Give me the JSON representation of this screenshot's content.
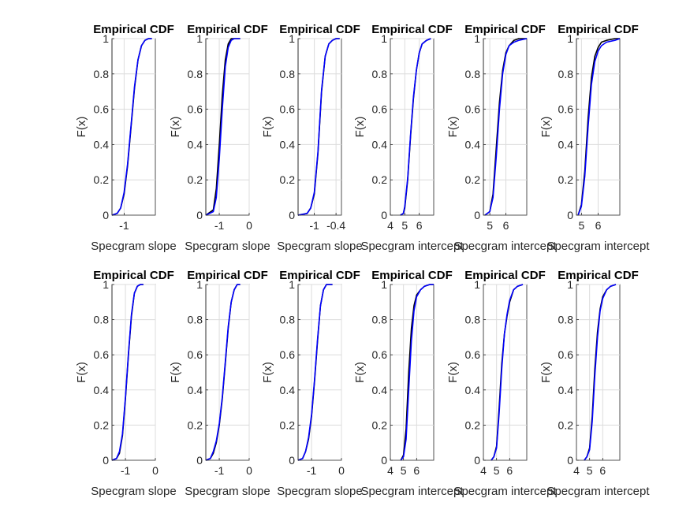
{
  "colors": {
    "series_primary": "#0000ff",
    "series_secondary": "#000000",
    "grid": "#dcdcdc",
    "axis": "#262626"
  },
  "chart_data": [
    {
      "type": "line",
      "title": "Empirical CDF",
      "xlabel": "Specgram slope",
      "ylabel": "F(x)",
      "xlim": [
        -1.35,
        -0.1
      ],
      "ylim": [
        0,
        1
      ],
      "xticks": [
        -1
      ],
      "xticklabels": [
        "-1"
      ],
      "yticks": [
        0,
        0.2,
        0.4,
        0.6,
        0.8,
        1
      ],
      "yticklabels": [
        "0",
        "0.2",
        "0.4",
        "0.6",
        "0.8",
        "1"
      ],
      "grid": true,
      "series": [
        {
          "color": "#000000",
          "x": [
            -1.35,
            -1.2,
            -1.1,
            -1.0,
            -0.9,
            -0.8,
            -0.7,
            -0.6,
            -0.5,
            -0.4,
            -0.3,
            -0.2
          ],
          "y": [
            0,
            0.01,
            0.04,
            0.12,
            0.28,
            0.5,
            0.72,
            0.88,
            0.96,
            0.99,
            1,
            1
          ]
        },
        {
          "color": "#0000ff",
          "x": [
            -1.35,
            -1.2,
            -1.1,
            -1.0,
            -0.9,
            -0.8,
            -0.7,
            -0.6,
            -0.5,
            -0.4,
            -0.3,
            -0.2
          ],
          "y": [
            0,
            0.01,
            0.04,
            0.13,
            0.29,
            0.51,
            0.73,
            0.88,
            0.96,
            0.99,
            1,
            1
          ]
        }
      ]
    },
    {
      "type": "line",
      "title": "Empirical CDF",
      "xlabel": "Specgram slope",
      "ylabel": "F(x)",
      "xlim": [
        -1.45,
        0
      ],
      "ylim": [
        0,
        1
      ],
      "xticks": [
        -1,
        0
      ],
      "xticklabels": [
        "-1",
        "0"
      ],
      "yticks": [
        0,
        0.2,
        0.4,
        0.6,
        0.8,
        1
      ],
      "yticklabels": [
        "0",
        "0.2",
        "0.4",
        "0.6",
        "0.8",
        "1"
      ],
      "grid": true,
      "series": [
        {
          "color": "#000000",
          "x": [
            -1.45,
            -1.2,
            -1.1,
            -1.0,
            -0.9,
            -0.8,
            -0.7,
            -0.6,
            -0.5,
            -0.4,
            -0.3
          ],
          "y": [
            0,
            0.03,
            0.15,
            0.4,
            0.68,
            0.88,
            0.97,
            1,
            1,
            1,
            1
          ]
        },
        {
          "color": "#0000ff",
          "x": [
            -1.45,
            -1.2,
            -1.1,
            -1.0,
            -0.9,
            -0.8,
            -0.7,
            -0.6,
            -0.5,
            -0.4,
            -0.3
          ],
          "y": [
            0,
            0.02,
            0.1,
            0.32,
            0.6,
            0.84,
            0.95,
            0.99,
            1,
            1,
            1
          ]
        }
      ]
    },
    {
      "type": "line",
      "title": "Empirical CDF",
      "xlabel": "Specgram slope",
      "ylabel": "F(x)",
      "xlim": [
        -1.45,
        -0.25
      ],
      "ylim": [
        0,
        1
      ],
      "xticks": [
        -1,
        -0.4
      ],
      "xticklabels": [
        "-1",
        "-0.4"
      ],
      "yticks": [
        0,
        0.2,
        0.4,
        0.6,
        0.8,
        1
      ],
      "yticklabels": [
        "0",
        "0.2",
        "0.4",
        "0.6",
        "0.8",
        "1"
      ],
      "grid": true,
      "series": [
        {
          "color": "#000000",
          "x": [
            -1.45,
            -1.2,
            -1.1,
            -1.0,
            -0.9,
            -0.8,
            -0.7,
            -0.6,
            -0.5,
            -0.4,
            -0.3
          ],
          "y": [
            0,
            0.01,
            0.04,
            0.12,
            0.35,
            0.7,
            0.9,
            0.97,
            0.99,
            1,
            1
          ]
        },
        {
          "color": "#0000ff",
          "x": [
            -1.45,
            -1.2,
            -1.1,
            -1.0,
            -0.9,
            -0.8,
            -0.7,
            -0.6,
            -0.5,
            -0.4,
            -0.3
          ],
          "y": [
            0,
            0.01,
            0.04,
            0.13,
            0.36,
            0.71,
            0.9,
            0.97,
            0.99,
            1,
            1
          ]
        }
      ]
    },
    {
      "type": "line",
      "title": "Empirical CDF",
      "xlabel": "Specgram intercept",
      "ylabel": "F(x)",
      "xlim": [
        4,
        7
      ],
      "ylim": [
        0,
        1
      ],
      "xticks": [
        4,
        5,
        6
      ],
      "xticklabels": [
        "4",
        "5",
        "6"
      ],
      "yticks": [
        0,
        0.2,
        0.4,
        0.6,
        0.8,
        1
      ],
      "yticklabels": [
        "0",
        "0.2",
        "0.4",
        "0.6",
        "0.8",
        "1"
      ],
      "grid": true,
      "series": [
        {
          "color": "#000000",
          "x": [
            4.7,
            4.9,
            5.0,
            5.2,
            5.4,
            5.6,
            5.8,
            6.0,
            6.2,
            6.5,
            6.8
          ],
          "y": [
            0,
            0.01,
            0.04,
            0.2,
            0.45,
            0.66,
            0.82,
            0.92,
            0.97,
            0.99,
            1
          ]
        },
        {
          "color": "#0000ff",
          "x": [
            4.7,
            4.9,
            5.0,
            5.2,
            5.4,
            5.6,
            5.8,
            6.0,
            6.2,
            6.5,
            6.8
          ],
          "y": [
            0,
            0.01,
            0.05,
            0.21,
            0.46,
            0.67,
            0.82,
            0.92,
            0.97,
            0.99,
            1
          ]
        }
      ]
    },
    {
      "type": "line",
      "title": "Empirical CDF",
      "xlabel": "Specgram intercept",
      "ylabel": "F(x)",
      "xlim": [
        4.6,
        7.3
      ],
      "ylim": [
        0,
        1
      ],
      "xticks": [
        5,
        6
      ],
      "xticklabels": [
        "5",
        "6"
      ],
      "yticks": [
        0,
        0.2,
        0.4,
        0.6,
        0.8,
        1
      ],
      "yticklabels": [
        "0",
        "0.2",
        "0.4",
        "0.6",
        "0.8",
        "1"
      ],
      "grid": true,
      "series": [
        {
          "color": "#000000",
          "x": [
            4.7,
            5.0,
            5.2,
            5.4,
            5.6,
            5.8,
            6.0,
            6.2,
            6.5,
            6.8,
            7.3
          ],
          "y": [
            0,
            0.02,
            0.12,
            0.38,
            0.64,
            0.82,
            0.92,
            0.96,
            0.99,
            1,
            1
          ]
        },
        {
          "color": "#0000ff",
          "x": [
            4.7,
            5.0,
            5.2,
            5.4,
            5.6,
            5.8,
            6.0,
            6.2,
            6.5,
            6.8,
            7.3
          ],
          "y": [
            0,
            0.02,
            0.1,
            0.33,
            0.6,
            0.8,
            0.91,
            0.96,
            0.98,
            0.99,
            1
          ]
        }
      ]
    },
    {
      "type": "line",
      "title": "Empirical CDF",
      "xlabel": "Specgram intercept",
      "ylabel": "F(x)",
      "xlim": [
        4.7,
        7.3
      ],
      "ylim": [
        0,
        1
      ],
      "xticks": [
        5,
        6
      ],
      "xticklabels": [
        "5",
        "6"
      ],
      "yticks": [
        0,
        0.2,
        0.4,
        0.6,
        0.8,
        1
      ],
      "yticklabels": [
        "0",
        "0.2",
        "0.4",
        "0.6",
        "0.8",
        "1"
      ],
      "grid": true,
      "series": [
        {
          "color": "#000000",
          "x": [
            4.8,
            5.0,
            5.2,
            5.4,
            5.6,
            5.8,
            6.0,
            6.2,
            6.5,
            7.0,
            7.3
          ],
          "y": [
            0,
            0.06,
            0.25,
            0.55,
            0.78,
            0.9,
            0.95,
            0.98,
            0.99,
            1,
            1
          ]
        },
        {
          "color": "#0000ff",
          "x": [
            4.8,
            5.0,
            5.2,
            5.4,
            5.6,
            5.8,
            6.0,
            6.2,
            6.5,
            7.0,
            7.3
          ],
          "y": [
            0,
            0.05,
            0.22,
            0.5,
            0.74,
            0.87,
            0.93,
            0.96,
            0.98,
            0.99,
            1
          ]
        }
      ]
    },
    {
      "type": "line",
      "title": "Empirical CDF",
      "xlabel": "Specgram slope",
      "ylabel": "F(x)",
      "xlim": [
        -1.45,
        0
      ],
      "ylim": [
        0,
        1
      ],
      "xticks": [
        -1,
        0
      ],
      "xticklabels": [
        "-1",
        "0"
      ],
      "yticks": [
        0,
        0.2,
        0.4,
        0.6,
        0.8,
        1
      ],
      "yticklabels": [
        "0",
        "0.2",
        "0.4",
        "0.6",
        "0.8",
        "1"
      ],
      "grid": true,
      "series": [
        {
          "color": "#000000",
          "x": [
            -1.45,
            -1.3,
            -1.2,
            -1.1,
            -1.0,
            -0.9,
            -0.8,
            -0.7,
            -0.6,
            -0.5,
            -0.4
          ],
          "y": [
            0,
            0.01,
            0.04,
            0.14,
            0.35,
            0.6,
            0.82,
            0.95,
            0.99,
            1,
            1
          ]
        },
        {
          "color": "#0000ff",
          "x": [
            -1.45,
            -1.3,
            -1.2,
            -1.1,
            -1.0,
            -0.9,
            -0.8,
            -0.7,
            -0.6,
            -0.5,
            -0.4
          ],
          "y": [
            0,
            0.01,
            0.05,
            0.15,
            0.36,
            0.61,
            0.83,
            0.95,
            0.99,
            1,
            1
          ]
        }
      ]
    },
    {
      "type": "line",
      "title": "Empirical CDF",
      "xlabel": "Specgram slope",
      "ylabel": "F(x)",
      "xlim": [
        -1.45,
        0
      ],
      "ylim": [
        0,
        1
      ],
      "xticks": [
        -1,
        0
      ],
      "xticklabels": [
        "-1",
        "0"
      ],
      "yticks": [
        0,
        0.2,
        0.4,
        0.6,
        0.8,
        1
      ],
      "yticklabels": [
        "0",
        "0.2",
        "0.4",
        "0.6",
        "0.8",
        "1"
      ],
      "grid": true,
      "series": [
        {
          "color": "#000000",
          "x": [
            -1.45,
            -1.3,
            -1.2,
            -1.1,
            -1.0,
            -0.9,
            -0.8,
            -0.7,
            -0.6,
            -0.5,
            -0.4,
            -0.3
          ],
          "y": [
            0,
            0.01,
            0.04,
            0.1,
            0.2,
            0.35,
            0.55,
            0.75,
            0.9,
            0.97,
            1,
            1
          ]
        },
        {
          "color": "#0000ff",
          "x": [
            -1.45,
            -1.3,
            -1.2,
            -1.1,
            -1.0,
            -0.9,
            -0.8,
            -0.7,
            -0.6,
            -0.5,
            -0.4,
            -0.3
          ],
          "y": [
            0,
            0.01,
            0.05,
            0.11,
            0.21,
            0.36,
            0.56,
            0.76,
            0.9,
            0.97,
            1,
            1
          ]
        }
      ]
    },
    {
      "type": "line",
      "title": "Empirical CDF",
      "xlabel": "Specgram slope",
      "ylabel": "F(x)",
      "xlim": [
        -1.45,
        0
      ],
      "ylim": [
        0,
        1
      ],
      "xticks": [
        -1,
        0
      ],
      "xticklabels": [
        "-1",
        "0"
      ],
      "yticks": [
        0,
        0.2,
        0.4,
        0.6,
        0.8,
        1
      ],
      "yticklabels": [
        "0",
        "0.2",
        "0.4",
        "0.6",
        "0.8",
        "1"
      ],
      "grid": true,
      "series": [
        {
          "color": "#000000",
          "x": [
            -1.45,
            -1.3,
            -1.2,
            -1.1,
            -1.0,
            -0.9,
            -0.8,
            -0.7,
            -0.6,
            -0.5,
            -0.4,
            -0.3
          ],
          "y": [
            0,
            0.01,
            0.05,
            0.12,
            0.25,
            0.45,
            0.68,
            0.88,
            0.97,
            1,
            1,
            1
          ]
        },
        {
          "color": "#0000ff",
          "x": [
            -1.45,
            -1.3,
            -1.2,
            -1.1,
            -1.0,
            -0.9,
            -0.8,
            -0.7,
            -0.6,
            -0.5,
            -0.4,
            -0.3
          ],
          "y": [
            0,
            0.01,
            0.05,
            0.13,
            0.26,
            0.46,
            0.69,
            0.88,
            0.97,
            1,
            1,
            1
          ]
        }
      ]
    },
    {
      "type": "line",
      "title": "Empirical CDF",
      "xlabel": "Specgram intercept",
      "ylabel": "F(x)",
      "xlim": [
        4,
        7.3
      ],
      "ylim": [
        0,
        1
      ],
      "xticks": [
        4,
        5,
        6
      ],
      "xticklabels": [
        "4",
        "5",
        "6"
      ],
      "yticks": [
        0,
        0.2,
        0.4,
        0.6,
        0.8,
        1
      ],
      "yticklabels": [
        "0",
        "0.2",
        "0.4",
        "0.6",
        "0.8",
        "1"
      ],
      "grid": true,
      "series": [
        {
          "color": "#000000",
          "x": [
            4.8,
            5.0,
            5.2,
            5.4,
            5.6,
            5.8,
            6.0,
            6.3,
            6.6,
            7.0,
            7.3
          ],
          "y": [
            0,
            0.03,
            0.18,
            0.5,
            0.75,
            0.88,
            0.94,
            0.97,
            0.99,
            1,
            1
          ]
        },
        {
          "color": "#0000ff",
          "x": [
            4.8,
            5.0,
            5.2,
            5.4,
            5.6,
            5.8,
            6.0,
            6.3,
            6.6,
            7.0,
            7.3
          ],
          "y": [
            0,
            0.02,
            0.12,
            0.4,
            0.68,
            0.85,
            0.93,
            0.97,
            0.99,
            1,
            1
          ]
        }
      ]
    },
    {
      "type": "line",
      "title": "Empirical CDF",
      "xlabel": "Specgram intercept",
      "ylabel": "F(x)",
      "xlim": [
        4,
        7.3
      ],
      "ylim": [
        0,
        1
      ],
      "xticks": [
        4,
        5,
        6
      ],
      "xticklabels": [
        "4",
        "5",
        "6"
      ],
      "yticks": [
        0,
        0.2,
        0.4,
        0.6,
        0.8,
        1
      ],
      "yticklabels": [
        "0",
        "0.2",
        "0.4",
        "0.6",
        "0.8",
        "1"
      ],
      "grid": true,
      "series": [
        {
          "color": "#000000",
          "x": [
            4.6,
            4.8,
            5.0,
            5.2,
            5.4,
            5.6,
            5.8,
            6.0,
            6.3,
            6.6,
            7.0
          ],
          "y": [
            0,
            0.02,
            0.08,
            0.3,
            0.55,
            0.72,
            0.82,
            0.9,
            0.97,
            0.99,
            1
          ]
        },
        {
          "color": "#0000ff",
          "x": [
            4.6,
            4.8,
            5.0,
            5.2,
            5.4,
            5.6,
            5.8,
            6.0,
            6.3,
            6.6,
            7.0
          ],
          "y": [
            0,
            0.02,
            0.07,
            0.27,
            0.52,
            0.72,
            0.83,
            0.91,
            0.97,
            0.99,
            1
          ]
        }
      ]
    },
    {
      "type": "line",
      "title": "Empirical CDF",
      "xlabel": "Specgram intercept",
      "ylabel": "F(x)",
      "xlim": [
        4,
        7.3
      ],
      "ylim": [
        0,
        1
      ],
      "xticks": [
        4,
        5,
        6
      ],
      "xticklabels": [
        "4",
        "5",
        "6"
      ],
      "yticks": [
        0,
        0.2,
        0.4,
        0.6,
        0.8,
        1
      ],
      "yticklabels": [
        "0",
        "0.2",
        "0.4",
        "0.6",
        "0.8",
        "1"
      ],
      "grid": true,
      "series": [
        {
          "color": "#000000",
          "x": [
            4.6,
            4.8,
            5.0,
            5.2,
            5.4,
            5.6,
            5.8,
            6.0,
            6.3,
            6.6,
            7.0
          ],
          "y": [
            0,
            0.02,
            0.07,
            0.25,
            0.52,
            0.73,
            0.86,
            0.93,
            0.97,
            0.99,
            1
          ]
        },
        {
          "color": "#0000ff",
          "x": [
            4.6,
            4.8,
            5.0,
            5.2,
            5.4,
            5.6,
            5.8,
            6.0,
            6.3,
            6.6,
            7.0
          ],
          "y": [
            0,
            0.02,
            0.06,
            0.22,
            0.48,
            0.7,
            0.85,
            0.92,
            0.97,
            0.99,
            1
          ]
        }
      ]
    }
  ]
}
